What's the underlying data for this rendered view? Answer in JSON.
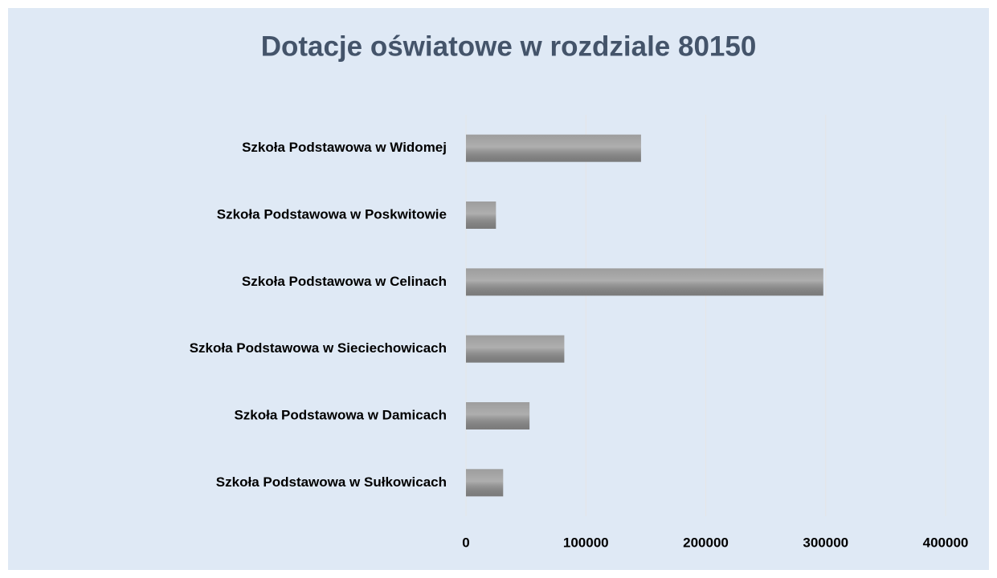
{
  "chart_data": {
    "type": "hbar",
    "title": "Dotacje oświatowe w rozdziale 80150",
    "categories": [
      "Szkoła Podstawowa w Widomej",
      "Szkoła Podstawowa w Poskwitowie",
      "Szkoła Podstawowa w Celinach",
      "Szkoła Podstawowa w Sieciechowicach",
      "Szkoła Podstawowa w Damicach",
      "Szkoła Podstawowa w Sułkowicach"
    ],
    "values": [
      146000,
      25000,
      298000,
      82000,
      53000,
      31000
    ],
    "color": "#8c8c8c",
    "xlim": [
      0,
      400000
    ],
    "xticks": [
      0,
      100000,
      200000,
      300000,
      400000
    ],
    "grid": true
  }
}
